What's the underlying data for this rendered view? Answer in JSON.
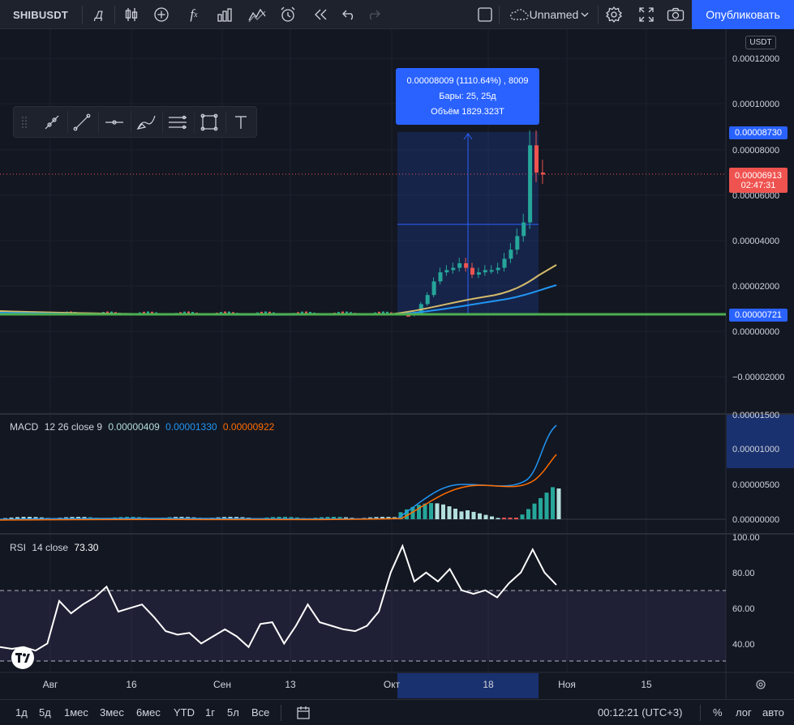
{
  "toolbar": {
    "symbol": "SHIBUSDT",
    "interval": "Д",
    "layout_name": "Unnamed",
    "publish_label": "Опубликовать",
    "icons": [
      "bar-style-icon",
      "add-indicator-icon",
      "fx-indicators-icon",
      "templates-icon",
      "compare-icon",
      "alert-icon",
      "replay-icon",
      "undo-icon",
      "redo-icon",
      "checkbox-icon",
      "cloud-icon",
      "settings-icon",
      "fullscreen-icon",
      "camera-icon"
    ]
  },
  "drawing_tools": [
    "handle-icon",
    "brush-icon",
    "trendline-icon",
    "horizontal-line-icon",
    "curve-icon",
    "parallel-lines-icon",
    "rectangle-icon",
    "text-icon"
  ],
  "measure": {
    "line1": "0.00008009 (1110.64%) , 8009",
    "line2": "Бары: 25, 25д",
    "line3": "Объём 1829.323T"
  },
  "price_axis": {
    "currency": "USDT",
    "ticks": [
      "0.00012000",
      "0.00010000",
      "0.00008000",
      "0.00006000",
      "0.00004000",
      "0.00002000",
      "0.00000000",
      "−0.00002000"
    ],
    "high_label": "0.00008730",
    "last_price": "0.00006913",
    "countdown": "02:47:31",
    "low_label": "0.00000721"
  },
  "macd": {
    "title": "MACD",
    "params": "12 26 close 9",
    "hist_value": "0.00000409",
    "macd_value": "0.00001330",
    "signal_value": "0.00000922",
    "ticks": [
      "0.00001500",
      "0.00001000",
      "0.00000500",
      "0.00000000"
    ],
    "colors": {
      "macd": "#2196f3",
      "signal": "#ff6d00",
      "hist_up": "#26a69a",
      "hist_light": "#b2dfdb",
      "hist_down": "#ef5350"
    }
  },
  "rsi": {
    "title": "RSI",
    "params": "14 close",
    "value": "73.30",
    "ticks": [
      "100.00",
      "80.00",
      "60.00",
      "40.00"
    ]
  },
  "time_axis": {
    "labels": [
      "Авг",
      "16",
      "Сен",
      "13",
      "Окт",
      "18",
      "Ноя",
      "15"
    ]
  },
  "bottom": {
    "ranges": [
      "1д",
      "5д",
      "1мес",
      "3мес",
      "6мес",
      "YTD",
      "1г",
      "5л",
      "Все"
    ],
    "clock": "00:12:21 (UTC+3)",
    "percent": "%",
    "log": "лог",
    "auto": "авто"
  },
  "colors": {
    "up": "#26a69a",
    "down": "#ef5350",
    "accent": "#2962ff",
    "background": "#131722"
  },
  "chart_data": {
    "type": "line",
    "price_candles_close": [
      7.21e-06,
      7.2e-06,
      7.1e-06,
      7.3e-06,
      7.2e-06,
      7.1e-06,
      7.25e-06,
      7.2e-06,
      7.2e-06,
      7.1e-06,
      7.15e-06,
      7.1e-06,
      7e-06,
      8e-06,
      1.2e-05,
      1.6e-05,
      2.2e-05,
      2.6e-05,
      2.7e-05,
      2.8e-05,
      3e-05,
      2.8e-05,
      2.5e-05,
      2.6e-05,
      2.7e-05,
      2.7e-05,
      2.8e-05,
      3.2e-05,
      3.6e-05,
      4.2e-05,
      4.8e-05,
      8.2e-05,
      7e-05,
      6.913e-05
    ],
    "rsi_values": [
      38,
      37,
      38,
      36,
      40,
      64,
      57,
      62,
      66,
      72,
      58,
      60,
      62,
      55,
      47,
      45,
      46,
      40,
      44,
      48,
      44,
      38,
      51,
      52,
      40,
      50,
      62,
      52,
      50,
      48,
      47,
      50,
      58,
      80,
      95,
      75,
      80,
      75,
      82,
      70,
      68,
      70,
      66,
      74,
      80,
      93,
      80,
      73
    ]
  }
}
